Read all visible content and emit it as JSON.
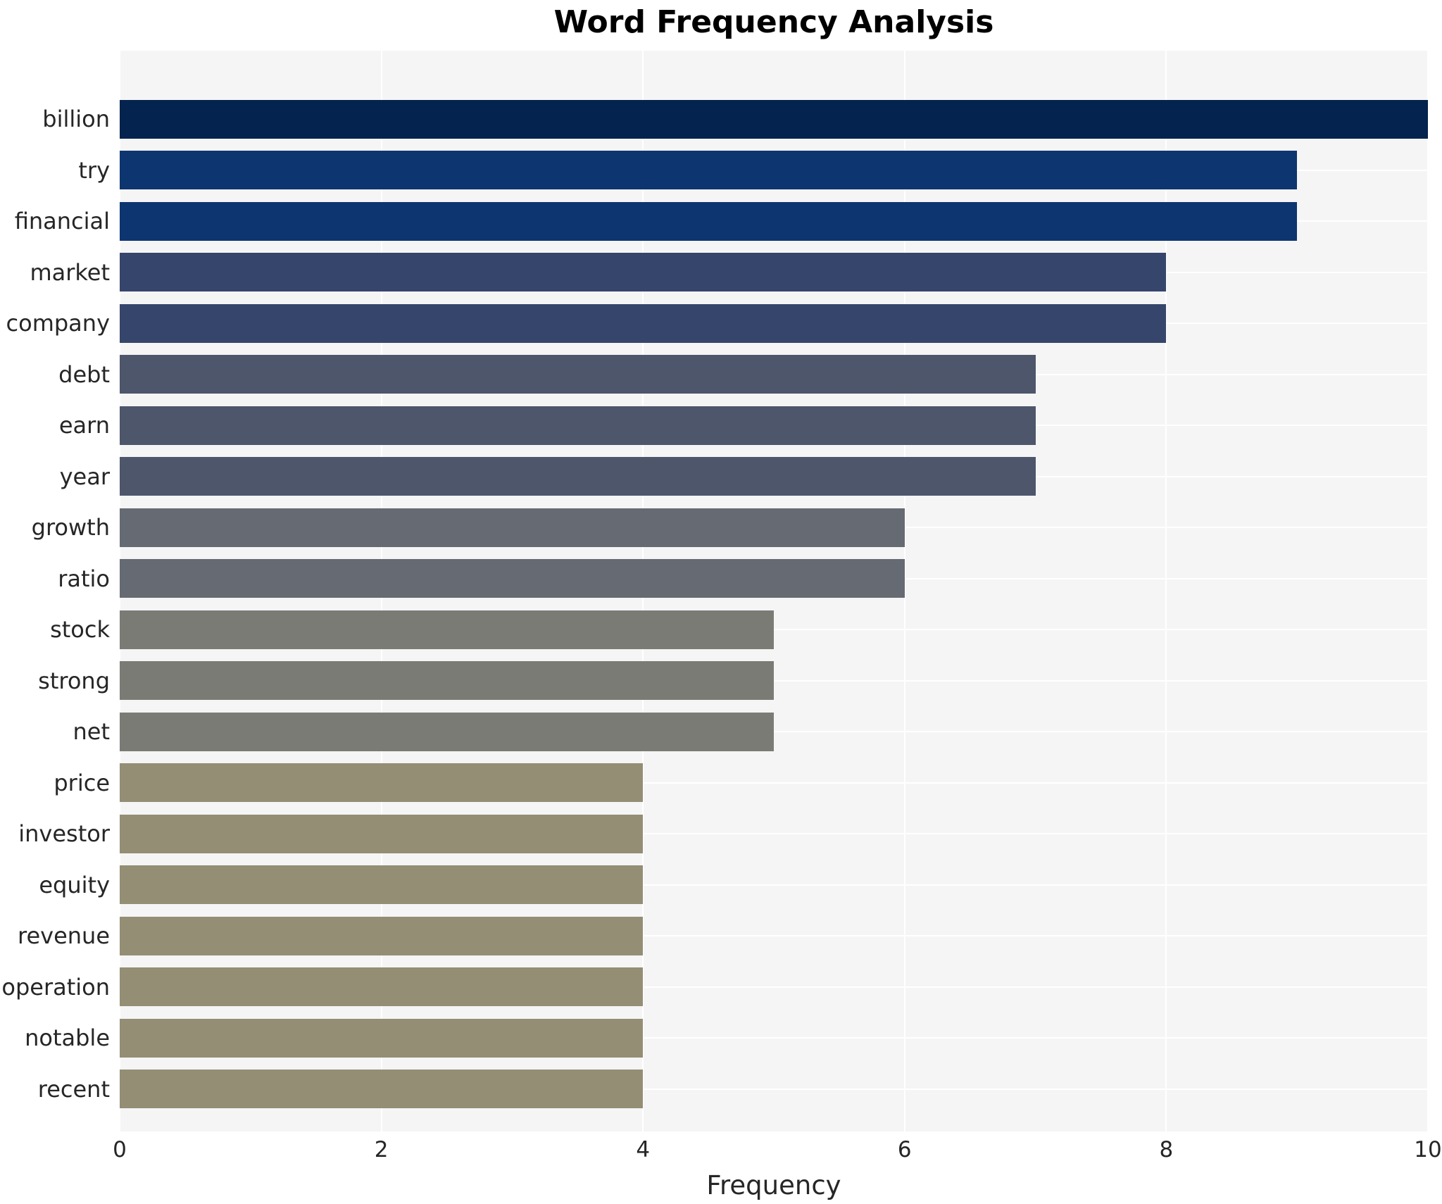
{
  "page": {
    "background": "#ffffff"
  },
  "chart_data": {
    "type": "bar",
    "orientation": "horizontal",
    "title": "Word Frequency Analysis",
    "xlabel": "Frequency",
    "ylabel": "",
    "xlim": [
      0,
      10
    ],
    "xticks": [
      0,
      2,
      4,
      6,
      8,
      10
    ],
    "grid": true,
    "legend_position": "none",
    "plot_background": "#f5f5f6",
    "gridline_color": "#ffffff",
    "text_color": "#262626",
    "categories": [
      "billion",
      "try",
      "financial",
      "market",
      "company",
      "debt",
      "earn",
      "year",
      "growth",
      "ratio",
      "stock",
      "strong",
      "net",
      "price",
      "investor",
      "equity",
      "revenue",
      "operation",
      "notable",
      "recent"
    ],
    "values": [
      10,
      9,
      9,
      8,
      8,
      7,
      7,
      7,
      6,
      6,
      5,
      5,
      5,
      4,
      4,
      4,
      4,
      4,
      4,
      4
    ],
    "bar_colors": [
      "#04234e",
      "#0d3570",
      "#0d3570",
      "#36456b",
      "#36456b",
      "#4e566c",
      "#4e566c",
      "#4e566c",
      "#666a72",
      "#666a72",
      "#7b7b76",
      "#7b7b76",
      "#7b7b76",
      "#938e74",
      "#938e74",
      "#938e74",
      "#938e74",
      "#938e74",
      "#938e74",
      "#938e74"
    ]
  }
}
